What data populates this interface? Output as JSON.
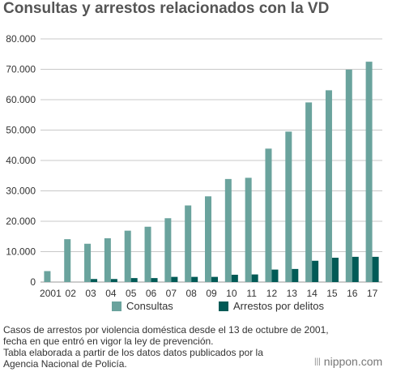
{
  "chart_data": {
    "type": "bar",
    "title": "Consultas y arrestos relacionados con la VD",
    "categories": [
      "2001",
      "02",
      "03",
      "04",
      "05",
      "06",
      "07",
      "08",
      "09",
      "10",
      "11",
      "12",
      "13",
      "14",
      "15",
      "16",
      "17"
    ],
    "series": [
      {
        "name": "Consultas",
        "color": "#6aa39d",
        "values": [
          3600,
          14100,
          12600,
          14400,
          16900,
          18200,
          21000,
          25200,
          28200,
          33900,
          34300,
          43900,
          49500,
          59100,
          63100,
          69900,
          72500
        ]
      },
      {
        "name": "Arrestos por delitos",
        "color": "#005a56",
        "values": [
          0,
          0,
          1000,
          1000,
          1300,
          1300,
          1700,
          1700,
          1700,
          2400,
          2500,
          4100,
          4300,
          7000,
          8000,
          8300,
          8300
        ]
      }
    ],
    "yticks": [
      "0",
      "10.000",
      "20.000",
      "30.000",
      "40.000",
      "50.000",
      "60.000",
      "70.000",
      "80.000"
    ],
    "ylim": [
      0,
      80000
    ],
    "grid": true,
    "legend": "bottom-center"
  },
  "notes": [
    "Casos de arrestos por violencia doméstica desde el 13 de octubre de 2001,",
    "fecha en que entró en vigor la ley de prevención.",
    "Tabla elaborada a partir de los datos datos publicados por la",
    "Agencia Nacional de Policía."
  ],
  "brand": {
    "mark": "|||",
    "name": "nippon.com"
  }
}
